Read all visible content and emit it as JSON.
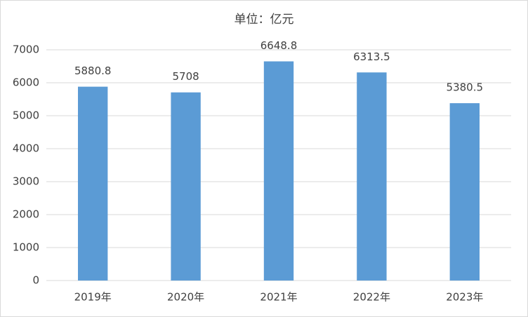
{
  "chart_data": {
    "type": "bar",
    "title": "单位：亿元",
    "categories": [
      "2019年",
      "2020年",
      "2021年",
      "2022年",
      "2023年"
    ],
    "values": [
      5880.8,
      5708,
      6648.8,
      6313.5,
      5380.5
    ],
    "color": "#5b9bd5",
    "ylim": [
      0,
      7000
    ],
    "yticks": [
      0,
      1000,
      2000,
      3000,
      4000,
      5000,
      6000,
      7000
    ],
    "grid": true
  }
}
